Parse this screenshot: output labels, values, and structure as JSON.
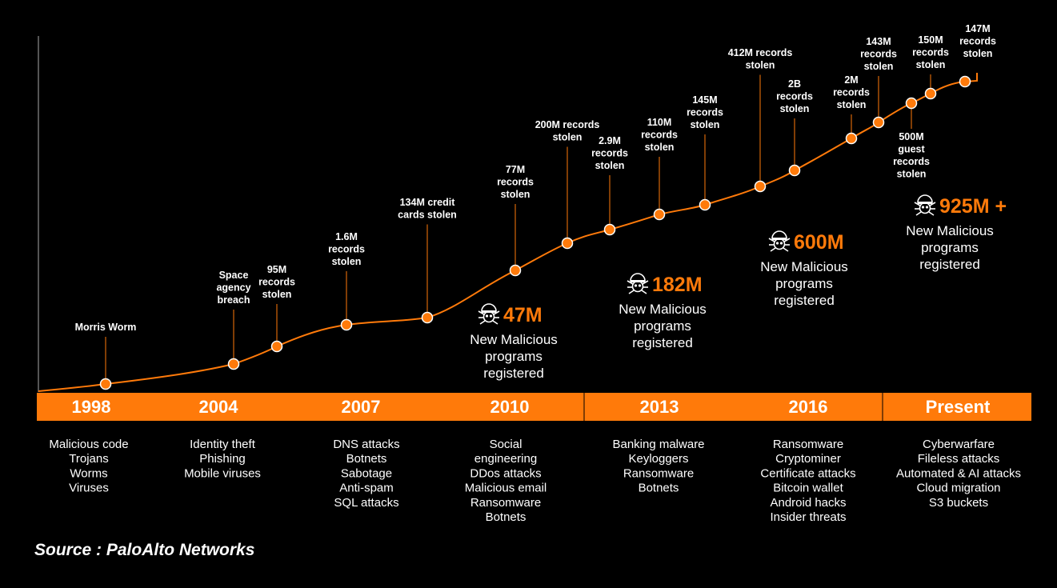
{
  "colors": {
    "accent": "#ff7a0a",
    "background": "#000000",
    "text": "#ffffff"
  },
  "icon": "virus-bug-icon",
  "source": "Source : PaloAlto Networks",
  "chart_data": {
    "type": "line",
    "x_axis": [
      "1998",
      "2004",
      "2007",
      "2010",
      "2013",
      "2016",
      "Present"
    ],
    "events": [
      {
        "lines": [
          "Morris Worm"
        ]
      },
      {
        "lines": [
          "Space",
          "agency",
          "breach"
        ]
      },
      {
        "lines": [
          "95M",
          "records",
          "stolen"
        ]
      },
      {
        "lines": [
          "1.6M",
          "records",
          "stolen"
        ]
      },
      {
        "lines": [
          "134M credit",
          "cards stolen"
        ]
      },
      {
        "lines": [
          "77M",
          "records",
          "stolen"
        ]
      },
      {
        "lines": [
          "200M records",
          "stolen"
        ]
      },
      {
        "lines": [
          "2.9M",
          "records",
          "stolen"
        ]
      },
      {
        "lines": [
          "110M",
          "records",
          "stolen"
        ]
      },
      {
        "lines": [
          "145M",
          "records",
          "stolen"
        ]
      },
      {
        "lines": [
          "412M records",
          "stolen"
        ]
      },
      {
        "lines": [
          "2B",
          "records",
          "stolen"
        ]
      },
      {
        "lines": [
          "2M",
          "records",
          "stolen"
        ]
      },
      {
        "lines": [
          "143M",
          "records",
          "stolen"
        ]
      },
      {
        "lines": [
          "500M",
          "guest",
          "records",
          "stolen"
        ]
      },
      {
        "lines": [
          "150M",
          "records",
          "stolen"
        ]
      },
      {
        "lines": [
          "147M",
          "records",
          "stolen"
        ]
      }
    ],
    "malware_counts": [
      {
        "value": "47M",
        "lines": [
          "New Malicious",
          "programs",
          "registered"
        ]
      },
      {
        "value": "182M",
        "lines": [
          "New Malicious",
          "programs",
          "registered"
        ]
      },
      {
        "value": "600M",
        "lines": [
          "New Malicious",
          "programs",
          "registered"
        ]
      },
      {
        "value": "925M +",
        "lines": [
          "New Malicious",
          "programs",
          "registered"
        ]
      }
    ],
    "threats": [
      {
        "period": "1998",
        "items": [
          "Malicious code",
          "Trojans",
          "Worms",
          "Viruses"
        ]
      },
      {
        "period": "2004",
        "items": [
          "Identity theft",
          "Phishing",
          "Mobile viruses"
        ]
      },
      {
        "period": "2007",
        "items": [
          "DNS attacks",
          "Botnets",
          "Sabotage",
          "Anti-spam",
          "SQL attacks"
        ]
      },
      {
        "period": "2010",
        "items": [
          "Social",
          "engineering",
          "DDos attacks",
          "Malicious email",
          "Ransomware",
          "Botnets"
        ]
      },
      {
        "period": "2013",
        "items": [
          "Banking malware",
          "Keyloggers",
          "Ransomware",
          "Botnets"
        ]
      },
      {
        "period": "2016",
        "items": [
          "Ransomware",
          "Cryptominer",
          "Certificate attacks",
          "Bitcoin wallet",
          "Android hacks",
          "Insider threats"
        ]
      },
      {
        "period": "Present",
        "items": [
          "Cyberwarfare",
          "Fileless attacks",
          "Automated & AI attacks",
          "Cloud migration",
          "S3 buckets"
        ]
      }
    ]
  }
}
